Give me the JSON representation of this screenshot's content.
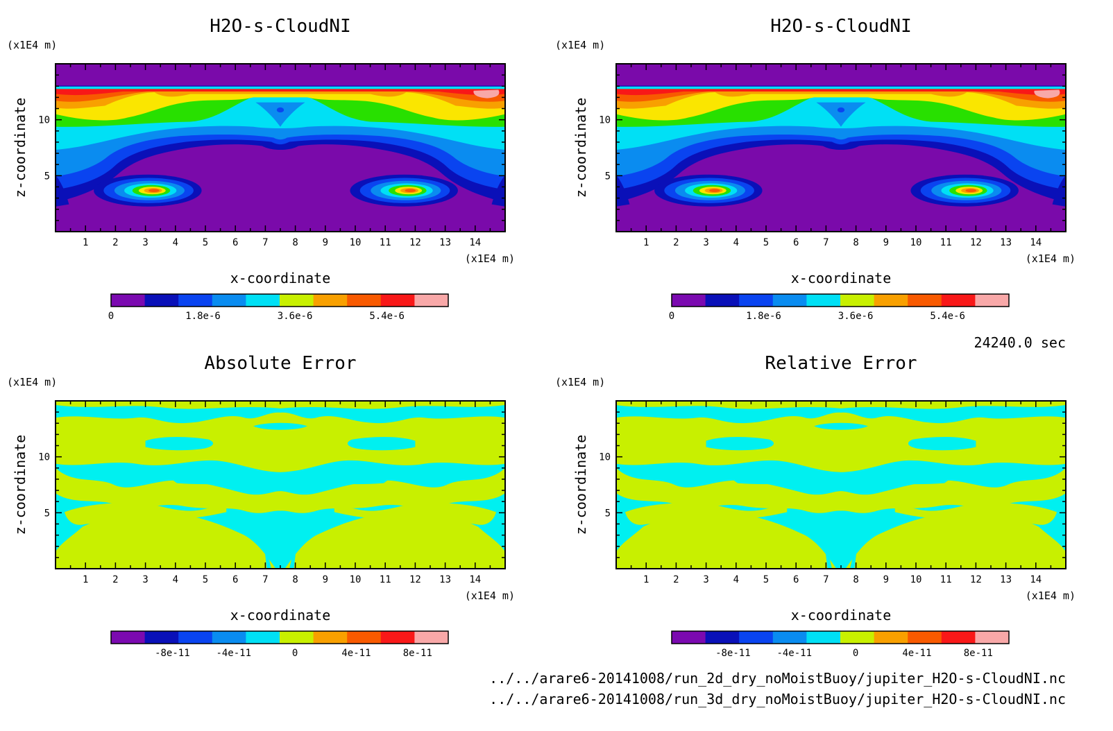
{
  "chart_data": [
    {
      "type": "heatmap",
      "title": "H2O-s-CloudNI",
      "xlabel": "x-coordinate",
      "ylabel": "z-coordinate",
      "x_unit": "(x1E4 m)",
      "y_unit": "(x1E4 m)",
      "xlim": [
        0,
        15
      ],
      "ylim": [
        0,
        15
      ],
      "x_ticks": [
        "1",
        "2",
        "3",
        "4",
        "5",
        "6",
        "7",
        "8",
        "9",
        "10",
        "11",
        "12",
        "13",
        "14"
      ],
      "y_ticks": [
        "5",
        "10"
      ],
      "colorbar": {
        "min": 0,
        "max": 6.6e-06,
        "labels": [
          "0",
          "1.8e-6",
          "3.6e-6",
          "5.4e-6"
        ],
        "label_values": [
          0,
          1.8e-06,
          3.6e-06,
          5.4e-06
        ]
      }
    },
    {
      "type": "heatmap",
      "title": "H2O-s-CloudNI",
      "xlabel": "x-coordinate",
      "ylabel": "z-coordinate",
      "x_unit": "(x1E4 m)",
      "y_unit": "(x1E4 m)",
      "xlim": [
        0,
        15
      ],
      "ylim": [
        0,
        15
      ],
      "x_ticks": [
        "1",
        "2",
        "3",
        "4",
        "5",
        "6",
        "7",
        "8",
        "9",
        "10",
        "11",
        "12",
        "13",
        "14"
      ],
      "y_ticks": [
        "5",
        "10"
      ],
      "colorbar": {
        "min": 0,
        "max": 6.6e-06,
        "labels": [
          "0",
          "1.8e-6",
          "3.6e-6",
          "5.4e-6"
        ],
        "label_values": [
          0,
          1.8e-06,
          3.6e-06,
          5.4e-06
        ]
      }
    },
    {
      "type": "heatmap",
      "title": "Absolute Error",
      "xlabel": "x-coordinate",
      "ylabel": "z-coordinate",
      "x_unit": "(x1E4 m)",
      "y_unit": "(x1E4 m)",
      "xlim": [
        0,
        15
      ],
      "ylim": [
        0,
        15
      ],
      "x_ticks": [
        "1",
        "2",
        "3",
        "4",
        "5",
        "6",
        "7",
        "8",
        "9",
        "10",
        "11",
        "12",
        "13",
        "14"
      ],
      "y_ticks": [
        "5",
        "10"
      ],
      "colorbar": {
        "min": -1.2e-10,
        "max": 1e-10,
        "labels": [
          "-8e-11",
          "-4e-11",
          "0",
          "4e-11",
          "8e-11"
        ],
        "label_values": [
          -8e-11,
          -4e-11,
          0,
          4e-11,
          8e-11
        ]
      }
    },
    {
      "type": "heatmap",
      "title": "Relative Error",
      "xlabel": "x-coordinate",
      "ylabel": "z-coordinate",
      "x_unit": "(x1E4 m)",
      "y_unit": "(x1E4 m)",
      "xlim": [
        0,
        15
      ],
      "ylim": [
        0,
        15
      ],
      "x_ticks": [
        "1",
        "2",
        "3",
        "4",
        "5",
        "6",
        "7",
        "8",
        "9",
        "10",
        "11",
        "12",
        "13",
        "14"
      ],
      "y_ticks": [
        "5",
        "10"
      ],
      "colorbar": {
        "min": -1.2e-10,
        "max": 1e-10,
        "labels": [
          "-8e-11",
          "-4e-11",
          "0",
          "4e-11",
          "8e-11"
        ],
        "label_values": [
          -8e-11,
          -4e-11,
          0,
          4e-11,
          8e-11
        ]
      }
    }
  ],
  "colors": {
    "levels": [
      "#7b0ab0",
      "#0a10b8",
      "#0a44f0",
      "#0a8cf0",
      "#00e0f5",
      "#c8f000",
      "#f8a000",
      "#f85a00",
      "#f81818",
      "#f8a8a8"
    ],
    "field": {
      "purple": "#7a0aaa",
      "dblue": "#0a10b8",
      "blue": "#0a44f0",
      "mblue": "#0a8cf0",
      "cyan": "#00e0f5",
      "green": "#28e000",
      "yellow": "#fae600",
      "orange": "#f8a000",
      "dorange": "#f85a00",
      "red": "#f81818",
      "pink": "#f8a8a8"
    },
    "error_cyan": "#00f0f0",
    "error_lime": "#c8f000"
  },
  "info": {
    "time": "24240.0 sec",
    "file1": "../../arare6-20141008/run_2d_dry_noMoistBuoy/jupiter_H2O-s-CloudNI.nc",
    "file2": "../../arare6-20141008/run_3d_dry_noMoistBuoy/jupiter_H2O-s-CloudNI.nc"
  }
}
